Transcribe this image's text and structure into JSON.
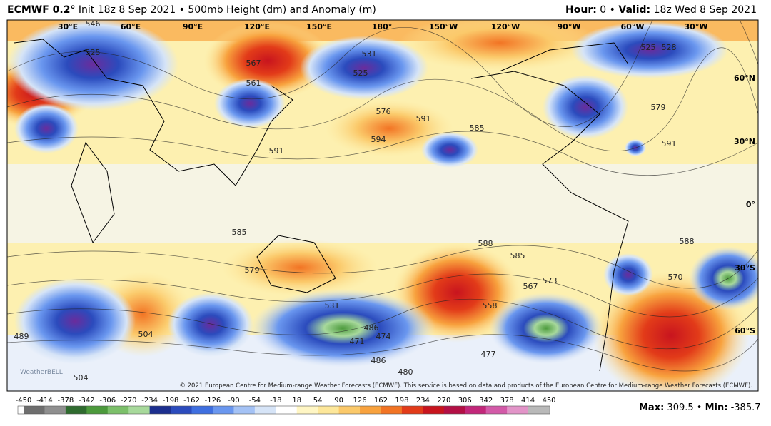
{
  "header": {
    "model": "ECMWF 0.2°",
    "init": "Init 18z 8 Sep 2021",
    "product": "500mb Height (dm) and Anomaly (m)",
    "hour_label": "Hour:",
    "hour": "0",
    "valid_label": "Valid:",
    "valid": "18z Wed 8 Sep 2021"
  },
  "map": {
    "longitude_labels": [
      "30°E",
      "60°E",
      "90°E",
      "120°E",
      "150°E",
      "180°",
      "150°W",
      "120°W",
      "90°W",
      "60°W",
      "30°W"
    ],
    "latitude_labels": [
      "60°N",
      "30°N",
      "0°",
      "30°S",
      "60°S"
    ],
    "contour_labels": [
      "546",
      "525",
      "567",
      "561",
      "531",
      "525",
      "576",
      "591",
      "594",
      "585",
      "528",
      "525",
      "579",
      "591",
      "591",
      "585",
      "588",
      "585",
      "579",
      "573",
      "567",
      "558",
      "531",
      "486",
      "474",
      "471",
      "486",
      "480",
      "477",
      "504",
      "489",
      "504",
      "588",
      "570"
    ],
    "watermark": "WeatherBELL",
    "copyright": "© 2021 European Centre for Medium-range Weather Forecasts (ECMWF). This service is based on data and products of the European Centre for Medium-range Weather Forecasts (ECMWF)."
  },
  "colorbar": {
    "ticks": [
      "-450",
      "-414",
      "-378",
      "-342",
      "-306",
      "-270",
      "-234",
      "-198",
      "-162",
      "-126",
      "-90",
      "-54",
      "-18",
      "18",
      "54",
      "90",
      "126",
      "162",
      "198",
      "234",
      "270",
      "306",
      "342",
      "378",
      "414",
      "450"
    ],
    "colors": [
      "#6e6e6e",
      "#8f8f8f",
      "#2f6b2f",
      "#4c9a3c",
      "#7cc06a",
      "#a7d99b",
      "#1c2f8f",
      "#2b4bbd",
      "#3f6fe0",
      "#6a97ef",
      "#a4c2f5",
      "#d6e4f7",
      "#ffffff",
      "#fff6c4",
      "#fde79a",
      "#fbc96a",
      "#f8a23e",
      "#f27424",
      "#e23b19",
      "#c8141e",
      "#b30f45",
      "#c2277a",
      "#d35aa8",
      "#e294c8",
      "#b9b9b9"
    ]
  },
  "footer": {
    "max_label": "Max:",
    "max": "309.5",
    "min_label": "Min:",
    "min": "-385.7"
  }
}
